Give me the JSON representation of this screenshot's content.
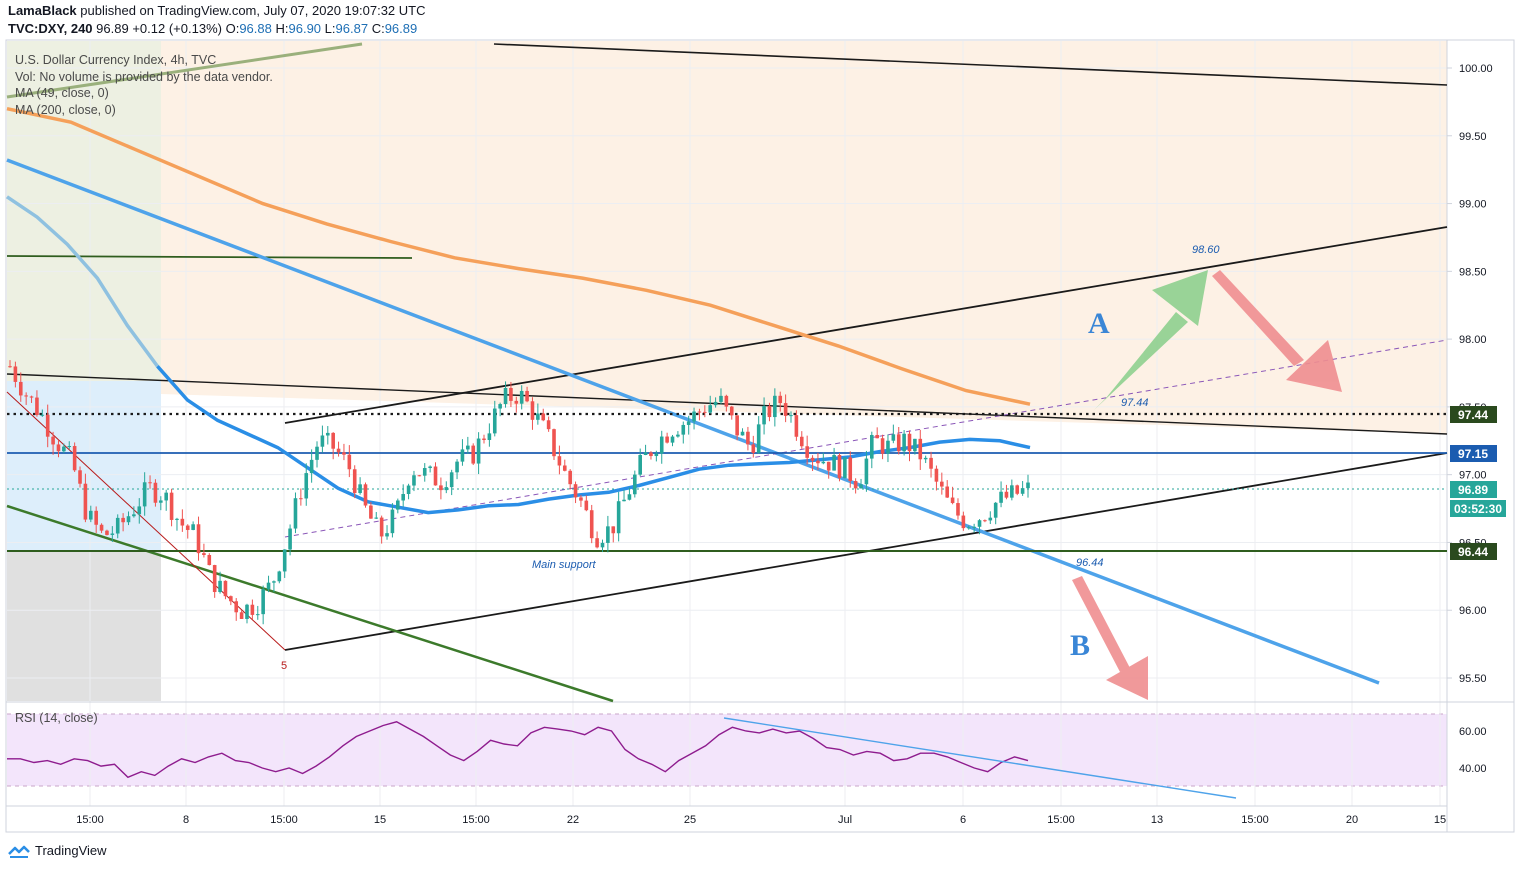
{
  "header": {
    "publisher": "LamaBlack",
    "published_text": "published on TradingView.com, July 07, 2020 19:07:32 UTC",
    "symbol": "TVC:DXY, 240",
    "last": "96.89",
    "change": "+0.12 (+0.13%)",
    "open": "96.88",
    "high": "96.90",
    "low": "96.87",
    "close": "96.89"
  },
  "legend": {
    "title": "U.S. Dollar Currency Index, 4h, TVC",
    "volume": "Vol: No volume is provided by the data vendor.",
    "ma1": "MA (49, close, 0)",
    "ma2": "MA (200, close, 0)"
  },
  "rsi_label": "RSI (14, close)",
  "footer": {
    "brand": "TradingView"
  },
  "annotations": {
    "label_a": "A",
    "label_b": "B",
    "target_a": "98.60",
    "level_mid": "97.44",
    "level_b": "96.44",
    "main_support": "Main support",
    "wave_5": "5"
  },
  "price_tags": {
    "t9744": "97.44",
    "t9715": "97.15",
    "t9689": "96.89",
    "countdown": "03:52:30",
    "t9644": "96.44"
  },
  "colors": {
    "bull": "#26a69a",
    "bear": "#ef5350",
    "ma49": "#2a8ee6",
    "ma200": "#f5a05a",
    "rsi": "#8e1c8e",
    "zone": "#fdf1e5",
    "rsi_band": "#f3e5fb",
    "arrow_up": "#8fd08f",
    "arrow_down": "#ef8e90"
  },
  "chart_data": [
    {
      "type": "candlestick",
      "symbol": "TVC:DXY",
      "interval": "240",
      "ylim": [
        95.25,
        100.25
      ],
      "y_ticks": [
        "100.00",
        "99.50",
        "99.00",
        "98.50",
        "98.00",
        "97.50",
        "97.00",
        "96.50",
        "96.00",
        "95.50"
      ],
      "x_ticks": [
        "15:00",
        "8",
        "15:00",
        "15",
        "15:00",
        "22",
        "25",
        "Jul",
        "6",
        "15:00",
        "13",
        "15:00",
        "20",
        "15"
      ],
      "close_path": [
        97.8,
        97.6,
        97.45,
        97.25,
        97.1,
        96.7,
        96.55,
        96.6,
        96.75,
        96.9,
        96.85,
        96.65,
        96.55,
        96.25,
        96.1,
        96.0,
        96.05,
        96.2,
        96.55,
        96.95,
        97.25,
        97.2,
        97.05,
        96.75,
        96.55,
        96.7,
        97.05,
        97.0,
        96.95,
        97.1,
        97.15,
        97.35,
        97.55,
        97.6,
        97.45,
        97.25,
        97.0,
        96.8,
        96.55,
        96.6,
        96.85,
        97.1,
        97.25,
        97.35,
        97.4,
        97.5,
        97.55,
        97.35,
        97.2,
        97.45,
        97.55,
        97.35,
        97.15,
        97.1,
        97.05,
        96.95,
        97.25,
        97.2,
        97.25,
        97.15,
        96.95,
        96.75,
        96.65,
        96.7,
        96.8,
        96.85,
        96.89
      ],
      "ma49": [
        99.05,
        98.9,
        98.7,
        98.45,
        98.1,
        97.8,
        97.55,
        97.4,
        97.3,
        97.2,
        97.05,
        96.9,
        96.8,
        96.76,
        96.72,
        96.74,
        96.77,
        96.78,
        96.82,
        96.85,
        96.87,
        96.92,
        96.98,
        97.04,
        97.07,
        97.08,
        97.09,
        97.11,
        97.13,
        97.17,
        97.2,
        97.24,
        97.26,
        97.25,
        97.2
      ],
      "ma200": [
        99.7,
        99.6,
        99.4,
        99.2,
        99.0,
        98.85,
        98.72,
        98.6,
        98.52,
        98.45,
        98.36,
        98.25,
        98.1,
        97.95,
        97.78,
        97.62,
        97.52
      ],
      "levels": [
        97.44,
        97.15,
        96.44
      ],
      "last": 96.89,
      "countdown": "03:52:30",
      "targets": {
        "A": 98.6,
        "B": 96.44
      }
    },
    {
      "type": "line",
      "title": "RSI (14, close)",
      "y_ticks": [
        "60.00",
        "40.00"
      ],
      "bands": [
        70,
        30
      ],
      "values": [
        45,
        45,
        43,
        44,
        42,
        45,
        44,
        41,
        42,
        35,
        38,
        36,
        41,
        45,
        43,
        46,
        48,
        44,
        43,
        40,
        38,
        40,
        37,
        41,
        46,
        52,
        57,
        60,
        63,
        65,
        61,
        57,
        52,
        47,
        44,
        49,
        55,
        53,
        52,
        59,
        62,
        61,
        60,
        58,
        62,
        60,
        50,
        45,
        42,
        38,
        44,
        48,
        52,
        58,
        62,
        60,
        59,
        61,
        59,
        60,
        56,
        51,
        50,
        47,
        49,
        48,
        44,
        45,
        48,
        48,
        46,
        43,
        40,
        38,
        43,
        46,
        44
      ]
    }
  ]
}
